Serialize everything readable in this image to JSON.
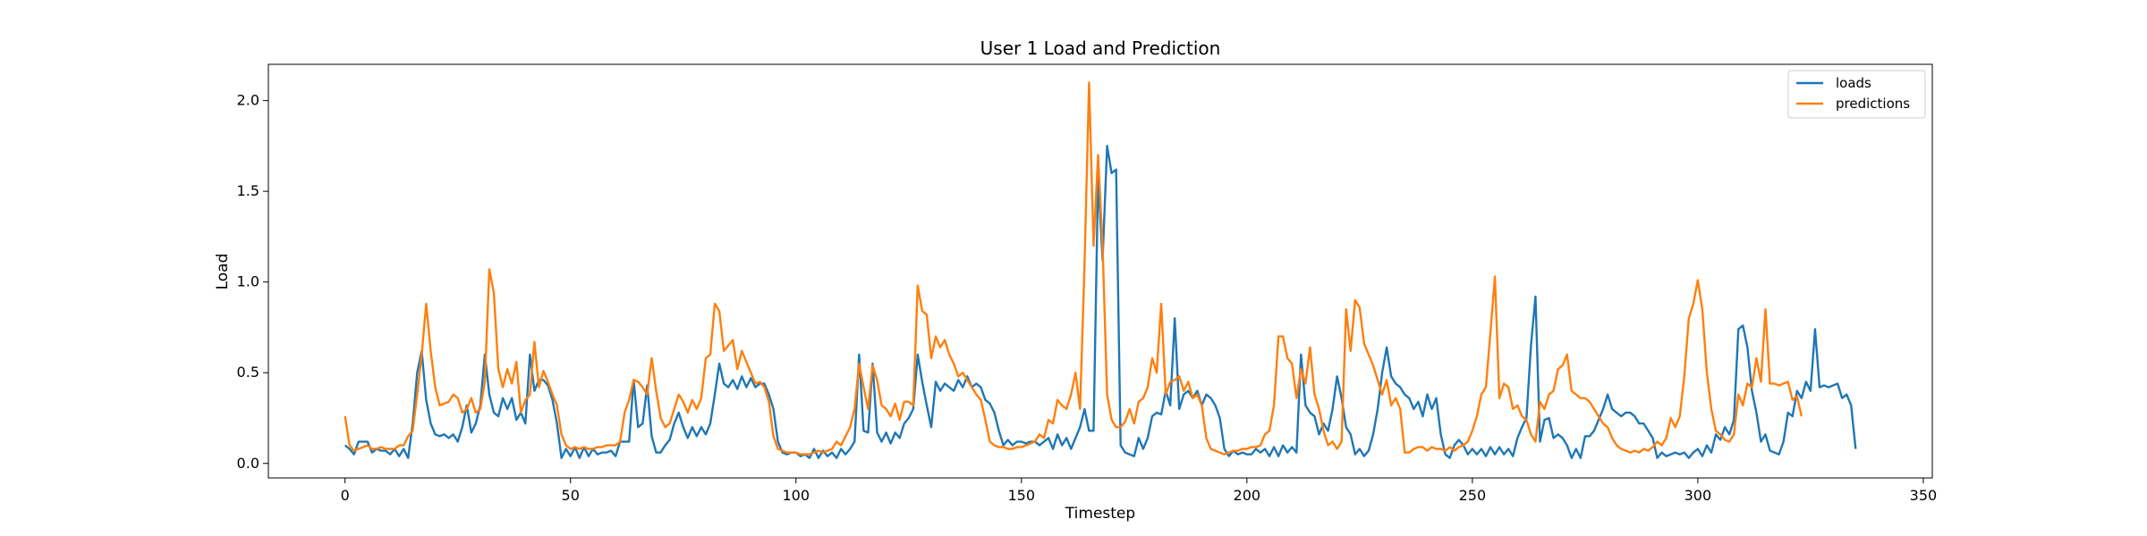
{
  "chart_data": {
    "type": "line",
    "title": "User 1 Load and Prediction",
    "xlabel": "Timestep",
    "ylabel": "Load",
    "xlim": [
      -17,
      352
    ],
    "ylim": [
      -0.08,
      2.2
    ],
    "xticks": [
      0,
      50,
      100,
      150,
      200,
      250,
      300,
      350
    ],
    "yticks": [
      0.0,
      0.5,
      1.0,
      1.5,
      2.0
    ],
    "grid": false,
    "legend": "top-right",
    "series": [
      {
        "name": "loads",
        "color": "#1f77b4",
        "values": [
          0.1,
          0.08,
          0.05,
          0.12,
          0.12,
          0.12,
          0.06,
          0.08,
          0.07,
          0.07,
          0.05,
          0.08,
          0.04,
          0.08,
          0.03,
          0.22,
          0.5,
          0.62,
          0.35,
          0.22,
          0.16,
          0.15,
          0.16,
          0.14,
          0.16,
          0.12,
          0.2,
          0.32,
          0.17,
          0.22,
          0.32,
          0.6,
          0.38,
          0.28,
          0.26,
          0.36,
          0.3,
          0.36,
          0.24,
          0.28,
          0.22,
          0.6,
          0.4,
          0.46,
          0.46,
          0.43,
          0.35,
          0.22,
          0.03,
          0.08,
          0.04,
          0.09,
          0.03,
          0.09,
          0.04,
          0.08,
          0.05,
          0.06,
          0.06,
          0.07,
          0.04,
          0.12,
          0.12,
          0.12,
          0.46,
          0.2,
          0.22,
          0.43,
          0.15,
          0.06,
          0.06,
          0.1,
          0.13,
          0.22,
          0.28,
          0.2,
          0.14,
          0.2,
          0.15,
          0.2,
          0.16,
          0.22,
          0.38,
          0.55,
          0.44,
          0.42,
          0.46,
          0.41,
          0.48,
          0.42,
          0.47,
          0.42,
          0.44,
          0.44,
          0.38,
          0.3,
          0.12,
          0.06,
          0.05,
          0.06,
          0.06,
          0.04,
          0.05,
          0.03,
          0.08,
          0.03,
          0.07,
          0.04,
          0.06,
          0.03,
          0.08,
          0.05,
          0.08,
          0.12,
          0.6,
          0.18,
          0.17,
          0.55,
          0.17,
          0.12,
          0.17,
          0.11,
          0.17,
          0.14,
          0.22,
          0.25,
          0.3,
          0.6,
          0.45,
          0.32,
          0.2,
          0.45,
          0.4,
          0.44,
          0.42,
          0.4,
          0.46,
          0.42,
          0.48,
          0.42,
          0.44,
          0.42,
          0.35,
          0.33,
          0.28,
          0.18,
          0.1,
          0.13,
          0.1,
          0.12,
          0.12,
          0.11,
          0.12,
          0.12,
          0.1,
          0.12,
          0.14,
          0.08,
          0.16,
          0.1,
          0.14,
          0.08,
          0.14,
          0.2,
          0.3,
          0.18,
          0.18,
          1.58,
          1.12,
          1.75,
          1.6,
          1.62,
          0.1,
          0.06,
          0.05,
          0.04,
          0.14,
          0.08,
          0.14,
          0.26,
          0.28,
          0.27,
          0.4,
          0.32,
          0.8,
          0.3,
          0.38,
          0.4,
          0.36,
          0.4,
          0.32,
          0.38,
          0.36,
          0.32,
          0.25,
          0.08,
          0.04,
          0.07,
          0.05,
          0.06,
          0.05,
          0.05,
          0.08,
          0.06,
          0.08,
          0.04,
          0.09,
          0.04,
          0.1,
          0.06,
          0.09,
          0.06,
          0.6,
          0.32,
          0.28,
          0.26,
          0.16,
          0.22,
          0.18,
          0.3,
          0.48,
          0.36,
          0.2,
          0.16,
          0.05,
          0.08,
          0.04,
          0.07,
          0.16,
          0.3,
          0.5,
          0.64,
          0.48,
          0.44,
          0.42,
          0.38,
          0.36,
          0.3,
          0.34,
          0.26,
          0.38,
          0.3,
          0.36,
          0.16,
          0.05,
          0.03,
          0.1,
          0.13,
          0.1,
          0.05,
          0.08,
          0.05,
          0.08,
          0.04,
          0.09,
          0.05,
          0.09,
          0.05,
          0.08,
          0.04,
          0.14,
          0.2,
          0.25,
          0.65,
          0.92,
          0.12,
          0.24,
          0.25,
          0.14,
          0.16,
          0.14,
          0.1,
          0.03,
          0.08,
          0.03,
          0.15,
          0.15,
          0.18,
          0.24,
          0.3,
          0.38,
          0.3,
          0.28,
          0.26,
          0.28,
          0.28,
          0.26,
          0.22,
          0.22,
          0.18,
          0.14,
          0.03,
          0.06,
          0.04,
          0.05,
          0.06,
          0.05,
          0.06,
          0.03,
          0.06,
          0.08,
          0.04,
          0.1,
          0.06,
          0.16,
          0.13,
          0.2,
          0.16,
          0.24,
          0.74,
          0.76,
          0.64,
          0.4,
          0.28,
          0.12,
          0.16,
          0.07,
          0.06,
          0.05,
          0.12,
          0.28,
          0.26,
          0.4,
          0.36,
          0.45,
          0.4,
          0.74,
          0.42,
          0.43,
          0.42,
          0.43,
          0.44,
          0.36,
          0.38,
          0.32,
          0.08
        ]
      },
      {
        "name": "predictions",
        "color": "#ff7f0e",
        "values": [
          0.26,
          0.1,
          0.07,
          0.08,
          0.09,
          0.1,
          0.08,
          0.08,
          0.09,
          0.08,
          0.08,
          0.08,
          0.1,
          0.1,
          0.15,
          0.18,
          0.38,
          0.6,
          0.88,
          0.62,
          0.42,
          0.32,
          0.33,
          0.34,
          0.38,
          0.36,
          0.28,
          0.3,
          0.36,
          0.28,
          0.3,
          0.45,
          1.07,
          0.94,
          0.52,
          0.42,
          0.52,
          0.44,
          0.56,
          0.28,
          0.35,
          0.38,
          0.67,
          0.42,
          0.51,
          0.45,
          0.38,
          0.32,
          0.16,
          0.1,
          0.08,
          0.09,
          0.08,
          0.09,
          0.08,
          0.08,
          0.09,
          0.09,
          0.1,
          0.1,
          0.1,
          0.12,
          0.28,
          0.35,
          0.46,
          0.45,
          0.42,
          0.38,
          0.58,
          0.4,
          0.25,
          0.2,
          0.22,
          0.3,
          0.38,
          0.34,
          0.28,
          0.35,
          0.3,
          0.36,
          0.58,
          0.6,
          0.88,
          0.84,
          0.62,
          0.65,
          0.68,
          0.52,
          0.62,
          0.56,
          0.5,
          0.44,
          0.45,
          0.42,
          0.34,
          0.15,
          0.08,
          0.07,
          0.06,
          0.06,
          0.06,
          0.05,
          0.05,
          0.05,
          0.06,
          0.07,
          0.06,
          0.07,
          0.08,
          0.12,
          0.1,
          0.15,
          0.2,
          0.3,
          0.55,
          0.42,
          0.3,
          0.54,
          0.46,
          0.32,
          0.3,
          0.26,
          0.33,
          0.24,
          0.34,
          0.34,
          0.32,
          0.98,
          0.84,
          0.82,
          0.58,
          0.7,
          0.64,
          0.68,
          0.6,
          0.55,
          0.48,
          0.5,
          0.46,
          0.42,
          0.38,
          0.35,
          0.24,
          0.12,
          0.1,
          0.09,
          0.09,
          0.08,
          0.08,
          0.09,
          0.09,
          0.1,
          0.11,
          0.12,
          0.16,
          0.14,
          0.24,
          0.22,
          0.35,
          0.32,
          0.3,
          0.38,
          0.5,
          0.3,
          1.1,
          2.1,
          1.2,
          1.7,
          1.2,
          0.38,
          0.24,
          0.2,
          0.2,
          0.23,
          0.3,
          0.22,
          0.34,
          0.36,
          0.42,
          0.58,
          0.5,
          0.88,
          0.38,
          0.45,
          0.46,
          0.48,
          0.4,
          0.45,
          0.36,
          0.38,
          0.32,
          0.14,
          0.08,
          0.07,
          0.06,
          0.05,
          0.06,
          0.07,
          0.07,
          0.08,
          0.08,
          0.09,
          0.09,
          0.1,
          0.16,
          0.18,
          0.32,
          0.7,
          0.7,
          0.58,
          0.55,
          0.36,
          0.52,
          0.44,
          0.64,
          0.38,
          0.3,
          0.18,
          0.1,
          0.12,
          0.08,
          0.12,
          0.85,
          0.62,
          0.9,
          0.86,
          0.66,
          0.6,
          0.54,
          0.46,
          0.38,
          0.46,
          0.32,
          0.36,
          0.3,
          0.06,
          0.06,
          0.08,
          0.09,
          0.09,
          0.07,
          0.09,
          0.08,
          0.08,
          0.07,
          0.09,
          0.07,
          0.09,
          0.1,
          0.12,
          0.18,
          0.26,
          0.38,
          0.42,
          0.72,
          1.03,
          0.36,
          0.44,
          0.42,
          0.3,
          0.32,
          0.26,
          0.24,
          0.16,
          0.12,
          0.34,
          0.3,
          0.38,
          0.4,
          0.52,
          0.54,
          0.6,
          0.4,
          0.38,
          0.36,
          0.36,
          0.34,
          0.3,
          0.26,
          0.22,
          0.2,
          0.14,
          0.1,
          0.08,
          0.07,
          0.06,
          0.07,
          0.06,
          0.08,
          0.07,
          0.09,
          0.12,
          0.1,
          0.14,
          0.25,
          0.2,
          0.26,
          0.48,
          0.8,
          0.88,
          1.01,
          0.85,
          0.5,
          0.3,
          0.18,
          0.16,
          0.13,
          0.12,
          0.16,
          0.38,
          0.32,
          0.44,
          0.42,
          0.58,
          0.45,
          0.85,
          0.44,
          0.44,
          0.43,
          0.44,
          0.45,
          0.35,
          0.37,
          0.26
        ]
      }
    ]
  }
}
